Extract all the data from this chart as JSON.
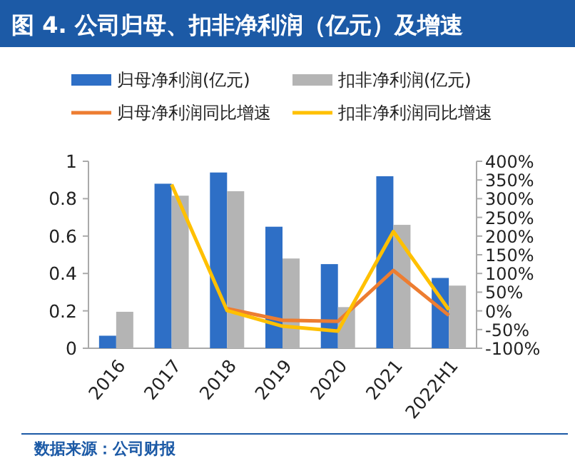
{
  "chart_data": {
    "type": "bar",
    "title": "图 4. 公司归母、扣非净利润（亿元）及增速",
    "categories": [
      "2016",
      "2017",
      "2018",
      "2019",
      "2020",
      "2021",
      "2022H1"
    ],
    "series": [
      {
        "name": "归母净利润(亿元)",
        "color": "#2e6fc6",
        "values": [
          0.067,
          0.88,
          0.94,
          0.65,
          0.45,
          0.92,
          0.376
        ]
      },
      {
        "name": "扣非净利润(亿元)",
        "color": "#b4b4b4",
        "values": [
          0.195,
          0.816,
          0.84,
          0.48,
          0.22,
          0.66,
          0.335
        ]
      },
      {
        "name": "归母净利润同比增速",
        "type": "line",
        "axis": "y2",
        "color": "#ed7d31",
        "values": [
          null,
          null,
          6,
          -25,
          -28,
          108,
          -12
        ]
      },
      {
        "name": "扣非净利润同比增速",
        "type": "line",
        "axis": "y2",
        "color": "#ffc000",
        "values": [
          null,
          338,
          1,
          -41,
          -54,
          212,
          3
        ]
      }
    ],
    "ylim": [
      0,
      1
    ],
    "yticks": [
      0,
      0.2,
      0.4,
      0.6,
      0.8,
      1
    ],
    "y2lim": [
      -100,
      400
    ],
    "y2ticks": [
      {
        "value": -100,
        "label": "-100%"
      },
      {
        "value": -50,
        "label": "-50%"
      },
      {
        "value": 0,
        "label": "0%"
      },
      {
        "value": 50,
        "label": "50%"
      },
      {
        "value": 100,
        "label": "100%"
      },
      {
        "value": 150,
        "label": "150%"
      },
      {
        "value": 200,
        "label": "200%"
      },
      {
        "value": 250,
        "label": "250%"
      },
      {
        "value": 300,
        "label": "300%"
      },
      {
        "value": 350,
        "label": "350%"
      },
      {
        "value": 400,
        "label": "400%"
      }
    ],
    "legend": "top",
    "grid": false,
    "annotations": [
      "数据来源：公司财报"
    ]
  }
}
